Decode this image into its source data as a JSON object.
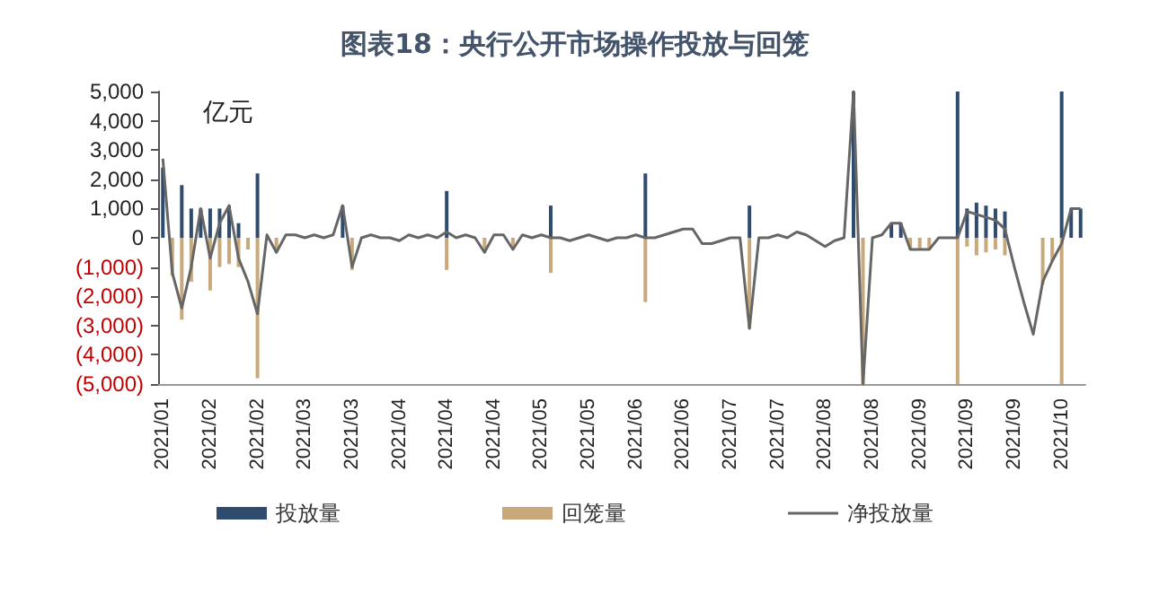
{
  "chart_data": {
    "type": "bar",
    "title": "图表18：央行公开市场操作投放与回笼",
    "ylabel": "亿元",
    "stacked": true,
    "legend": "bottom",
    "grid": false,
    "categories": [
      "2021/01",
      null,
      null,
      null,
      null,
      "2021/02",
      null,
      null,
      null,
      null,
      "2021/02",
      null,
      null,
      null,
      null,
      "2021/03",
      null,
      null,
      null,
      null,
      "2021/03",
      null,
      null,
      null,
      null,
      "2021/04",
      null,
      null,
      null,
      null,
      "2021/04",
      null,
      null,
      null,
      null,
      "2021/04",
      null,
      null,
      null,
      null,
      "2021/05",
      null,
      null,
      null,
      null,
      "2021/05",
      null,
      null,
      null,
      null,
      "2021/06",
      null,
      null,
      null,
      null,
      "2021/06",
      null,
      null,
      null,
      null,
      "2021/07",
      null,
      null,
      null,
      null,
      "2021/07",
      null,
      null,
      null,
      null,
      "2021/08",
      null,
      null,
      null,
      null,
      "2021/08",
      null,
      null,
      null,
      null,
      "2021/09",
      null,
      null,
      null,
      null,
      "2021/09",
      null,
      null,
      null,
      null,
      "2021/09",
      null,
      null,
      null,
      null,
      "2021/10",
      null,
      null
    ],
    "ylim": [
      -5000,
      5000
    ],
    "yticks": [
      {
        "value": -5000,
        "label": "(5,000)"
      },
      {
        "value": -4000,
        "label": "(4,000)"
      },
      {
        "value": -3000,
        "label": "(3,000)"
      },
      {
        "value": -2000,
        "label": "(2,000)"
      },
      {
        "value": -1000,
        "label": "(1,000)"
      },
      0,
      {
        "value": 1000,
        "label": "1,000"
      },
      {
        "value": 2000,
        "label": "2,000"
      },
      {
        "value": 3000,
        "label": "3,000"
      },
      {
        "value": 4000,
        "label": "4,000"
      },
      {
        "value": 5000,
        "label": "5,000"
      }
    ],
    "series": [
      {
        "name": "投放量",
        "color": "#2f4b6e",
        "values": [
          2400,
          null,
          1800,
          1000,
          1000,
          1000,
          1000,
          1100,
          500,
          null,
          2200,
          null,
          null,
          null,
          null,
          null,
          null,
          null,
          null,
          1100,
          null,
          null,
          null,
          null,
          null,
          null,
          null,
          null,
          null,
          null,
          1600,
          null,
          null,
          null,
          null,
          null,
          null,
          null,
          null,
          null,
          null,
          1100,
          null,
          null,
          null,
          null,
          null,
          null,
          null,
          null,
          null,
          2200,
          null,
          null,
          null,
          null,
          null,
          null,
          null,
          null,
          null,
          null,
          1100,
          null,
          null,
          null,
          null,
          null,
          null,
          null,
          null,
          null,
          null,
          5000,
          null,
          null,
          null,
          500,
          500,
          null,
          null,
          null,
          null,
          null,
          5000,
          1000,
          1200,
          1100,
          1000,
          900,
          null,
          null,
          null,
          null,
          null,
          5000,
          1000,
          1000
        ]
      },
      {
        "name": "回笼量",
        "color": "#c9a97a",
        "values": [
          null,
          -1300,
          -2800,
          -1500,
          null,
          -1800,
          -1000,
          -900,
          -1000,
          -400,
          -4800,
          null,
          -500,
          null,
          null,
          null,
          null,
          null,
          null,
          null,
          -1100,
          null,
          null,
          null,
          null,
          null,
          null,
          null,
          null,
          null,
          -1100,
          null,
          null,
          null,
          -500,
          null,
          null,
          -400,
          null,
          null,
          null,
          -1200,
          null,
          null,
          null,
          null,
          null,
          null,
          null,
          null,
          null,
          -2200,
          null,
          null,
          null,
          null,
          null,
          null,
          null,
          null,
          null,
          null,
          -3100,
          null,
          null,
          null,
          null,
          null,
          null,
          null,
          null,
          null,
          null,
          null,
          -5000,
          null,
          null,
          null,
          null,
          -400,
          -400,
          -400,
          null,
          null,
          -5000,
          -300,
          -600,
          -500,
          -400,
          -600,
          null,
          null,
          null,
          -1600,
          -800,
          -5000,
          null,
          null
        ]
      },
      {
        "name": "净投放量",
        "type": "line",
        "color": "#666666",
        "values": [
          2700,
          -1200,
          -2400,
          -1000,
          1000,
          -700,
          500,
          1100,
          -700,
          -1500,
          -2600,
          100,
          -500,
          100,
          100,
          0,
          100,
          0,
          100,
          1100,
          -1000,
          0,
          100,
          0,
          0,
          -100,
          100,
          0,
          100,
          0,
          200,
          0,
          100,
          0,
          -500,
          100,
          100,
          -400,
          100,
          0,
          100,
          0,
          0,
          -100,
          0,
          100,
          0,
          -100,
          0,
          0,
          100,
          0,
          0,
          100,
          200,
          300,
          300,
          -200,
          -200,
          -100,
          0,
          0,
          -3100,
          0,
          0,
          100,
          0,
          200,
          100,
          -100,
          -300,
          -100,
          0,
          5000,
          -5000,
          0,
          100,
          500,
          500,
          -400,
          -400,
          -400,
          0,
          0,
          0,
          900,
          800,
          700,
          600,
          300,
          -1000,
          -2200,
          -3300,
          -1500,
          -800,
          -200,
          1000,
          1000
        ]
      }
    ]
  }
}
